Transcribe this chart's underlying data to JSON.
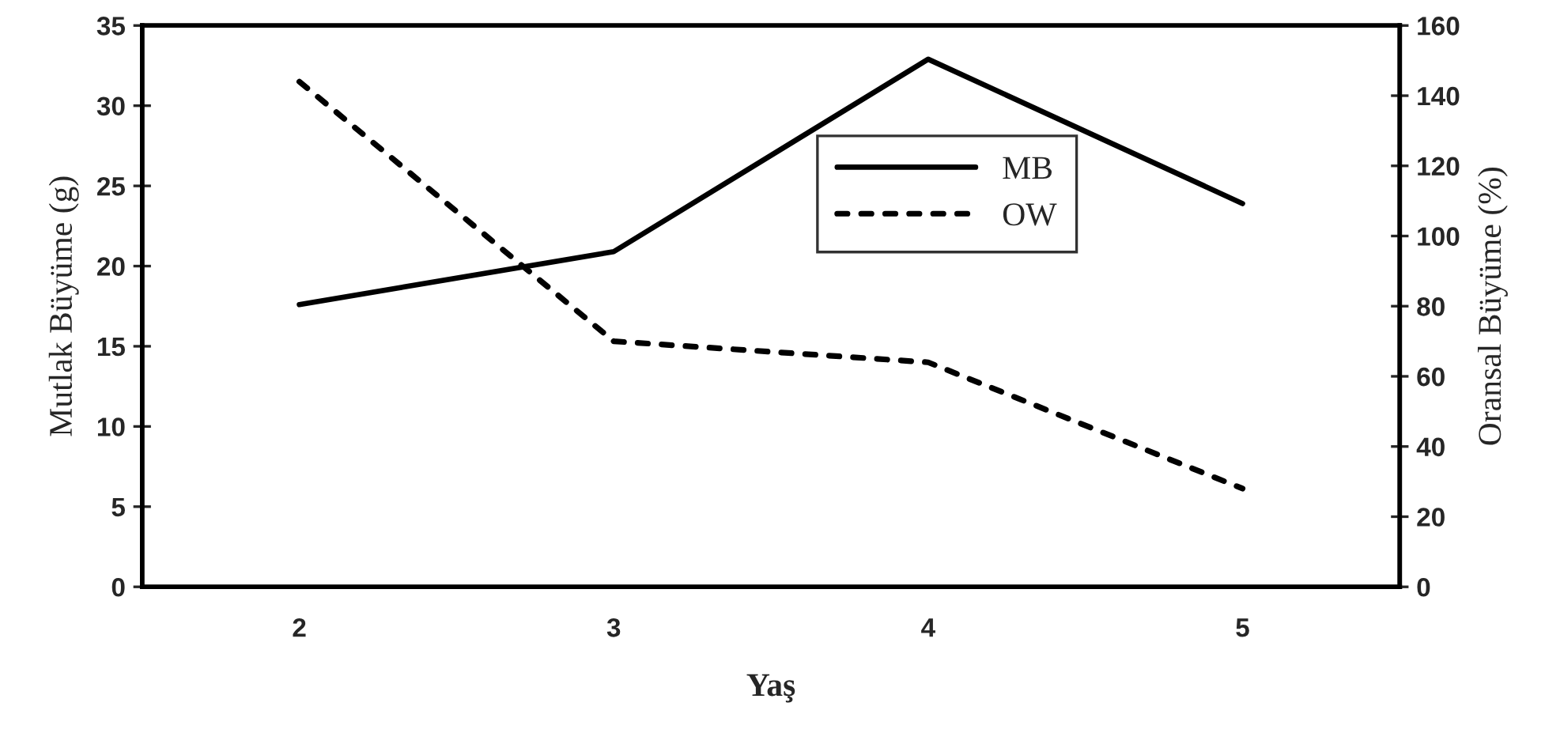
{
  "chart_data": {
    "type": "line",
    "xlabel": "Yaş",
    "ylabel": "Mutlak Büyüme (g)",
    "y2label": "Oransal Büyüme (%)",
    "categories": [
      "2",
      "3",
      "4",
      "5"
    ],
    "series": [
      {
        "name": "MB",
        "color": "#000000",
        "values": [
          17.6,
          20.9,
          32.9,
          23.9
        ],
        "line_style": "solid"
      },
      {
        "name": "OW",
        "color": "#000000",
        "values": [
          144,
          70,
          64,
          28
        ],
        "line_style": "dashed",
        "axis": "y2"
      }
    ],
    "ylim": [
      0,
      35
    ],
    "yticks": [
      0,
      5,
      10,
      15,
      20,
      25,
      30,
      35
    ],
    "y2lim": [
      0,
      160
    ],
    "y2ticks": [
      0,
      20,
      40,
      60,
      80,
      100,
      120,
      140,
      160
    ],
    "legend": "center",
    "grid": false,
    "marker": "none"
  }
}
